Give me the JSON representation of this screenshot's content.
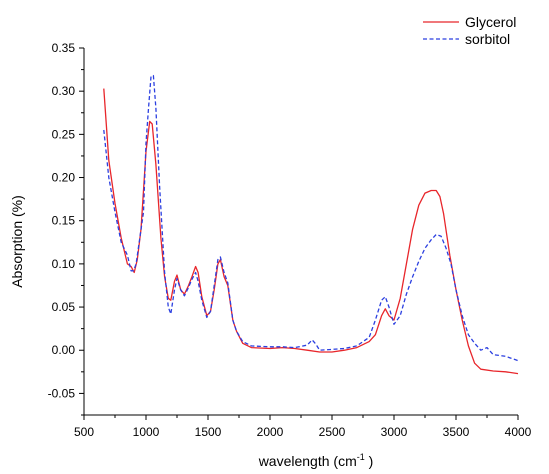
{
  "chart_data": {
    "type": "line",
    "title": "",
    "xlabel": "wavelength (cm",
    "xlabel_sup": "-1",
    "xlabel_suffix": " )",
    "ylabel": "Absorption (%)",
    "xlim": [
      500,
      4000
    ],
    "ylim": [
      -0.075,
      0.35
    ],
    "x_ticks": [
      500,
      1000,
      1500,
      2000,
      2500,
      3000,
      3500,
      4000
    ],
    "x_tick_labels": [
      "500",
      "1000",
      "1500",
      "2000",
      "2500",
      "3000",
      "3500",
      "4000"
    ],
    "y_ticks": [
      -0.05,
      0.0,
      0.05,
      0.1,
      0.15,
      0.2,
      0.25,
      0.3,
      0.35
    ],
    "y_tick_labels": [
      "-0.05",
      "0.00",
      "0.05",
      "0.10",
      "0.15",
      "0.20",
      "0.25",
      "0.30",
      "0.35"
    ],
    "grid": false,
    "legend_position": "top-right",
    "series": [
      {
        "name": "Glycerol",
        "color": "#e8262b",
        "dash": "solid",
        "points": [
          [
            660,
            0.303
          ],
          [
            700,
            0.22
          ],
          [
            750,
            0.17
          ],
          [
            800,
            0.13
          ],
          [
            850,
            0.1
          ],
          [
            880,
            0.097
          ],
          [
            905,
            0.09
          ],
          [
            930,
            0.105
          ],
          [
            960,
            0.14
          ],
          [
            1000,
            0.23
          ],
          [
            1030,
            0.265
          ],
          [
            1050,
            0.262
          ],
          [
            1080,
            0.215
          ],
          [
            1120,
            0.13
          ],
          [
            1150,
            0.085
          ],
          [
            1180,
            0.06
          ],
          [
            1200,
            0.058
          ],
          [
            1230,
            0.08
          ],
          [
            1250,
            0.087
          ],
          [
            1280,
            0.07
          ],
          [
            1310,
            0.065
          ],
          [
            1340,
            0.074
          ],
          [
            1370,
            0.085
          ],
          [
            1400,
            0.097
          ],
          [
            1420,
            0.09
          ],
          [
            1450,
            0.062
          ],
          [
            1490,
            0.04
          ],
          [
            1520,
            0.045
          ],
          [
            1550,
            0.07
          ],
          [
            1580,
            0.1
          ],
          [
            1600,
            0.105
          ],
          [
            1630,
            0.085
          ],
          [
            1660,
            0.075
          ],
          [
            1700,
            0.035
          ],
          [
            1730,
            0.022
          ],
          [
            1780,
            0.008
          ],
          [
            1850,
            0.003
          ],
          [
            2000,
            0.002
          ],
          [
            2100,
            0.003
          ],
          [
            2200,
            0.002
          ],
          [
            2300,
            0.0
          ],
          [
            2400,
            -0.002
          ],
          [
            2500,
            -0.002
          ],
          [
            2600,
            0.0
          ],
          [
            2700,
            0.003
          ],
          [
            2800,
            0.01
          ],
          [
            2850,
            0.018
          ],
          [
            2900,
            0.04
          ],
          [
            2930,
            0.048
          ],
          [
            2960,
            0.04
          ],
          [
            3000,
            0.035
          ],
          [
            3050,
            0.06
          ],
          [
            3100,
            0.1
          ],
          [
            3150,
            0.14
          ],
          [
            3200,
            0.168
          ],
          [
            3250,
            0.182
          ],
          [
            3300,
            0.185
          ],
          [
            3340,
            0.185
          ],
          [
            3370,
            0.178
          ],
          [
            3400,
            0.158
          ],
          [
            3450,
            0.11
          ],
          [
            3500,
            0.07
          ],
          [
            3550,
            0.035
          ],
          [
            3600,
            0.005
          ],
          [
            3650,
            -0.015
          ],
          [
            3700,
            -0.022
          ],
          [
            3800,
            -0.024
          ],
          [
            3900,
            -0.025
          ],
          [
            4000,
            -0.027
          ]
        ]
      },
      {
        "name": "sorbitol",
        "color": "#2b3fe0",
        "dash": "dashed",
        "points": [
          [
            660,
            0.255
          ],
          [
            700,
            0.2
          ],
          [
            750,
            0.16
          ],
          [
            800,
            0.125
          ],
          [
            850,
            0.11
          ],
          [
            880,
            0.092
          ],
          [
            900,
            0.092
          ],
          [
            920,
            0.1
          ],
          [
            950,
            0.13
          ],
          [
            980,
            0.16
          ],
          [
            1000,
            0.24
          ],
          [
            1020,
            0.28
          ],
          [
            1040,
            0.317
          ],
          [
            1060,
            0.318
          ],
          [
            1080,
            0.28
          ],
          [
            1110,
            0.19
          ],
          [
            1150,
            0.09
          ],
          [
            1180,
            0.05
          ],
          [
            1200,
            0.042
          ],
          [
            1230,
            0.07
          ],
          [
            1250,
            0.083
          ],
          [
            1280,
            0.07
          ],
          [
            1310,
            0.063
          ],
          [
            1340,
            0.072
          ],
          [
            1370,
            0.082
          ],
          [
            1400,
            0.09
          ],
          [
            1420,
            0.08
          ],
          [
            1450,
            0.058
          ],
          [
            1490,
            0.038
          ],
          [
            1520,
            0.045
          ],
          [
            1550,
            0.075
          ],
          [
            1580,
            0.105
          ],
          [
            1600,
            0.108
          ],
          [
            1630,
            0.09
          ],
          [
            1660,
            0.078
          ],
          [
            1700,
            0.035
          ],
          [
            1730,
            0.022
          ],
          [
            1780,
            0.01
          ],
          [
            1850,
            0.005
          ],
          [
            2000,
            0.004
          ],
          [
            2100,
            0.004
          ],
          [
            2200,
            0.003
          ],
          [
            2300,
            0.006
          ],
          [
            2340,
            0.012
          ],
          [
            2370,
            0.007
          ],
          [
            2400,
            0.0
          ],
          [
            2500,
            0.001
          ],
          [
            2600,
            0.002
          ],
          [
            2700,
            0.005
          ],
          [
            2800,
            0.015
          ],
          [
            2850,
            0.035
          ],
          [
            2900,
            0.058
          ],
          [
            2930,
            0.062
          ],
          [
            2960,
            0.05
          ],
          [
            3000,
            0.03
          ],
          [
            3050,
            0.04
          ],
          [
            3100,
            0.065
          ],
          [
            3150,
            0.085
          ],
          [
            3200,
            0.103
          ],
          [
            3250,
            0.118
          ],
          [
            3300,
            0.128
          ],
          [
            3340,
            0.134
          ],
          [
            3380,
            0.132
          ],
          [
            3420,
            0.118
          ],
          [
            3460,
            0.1
          ],
          [
            3500,
            0.07
          ],
          [
            3550,
            0.04
          ],
          [
            3600,
            0.018
          ],
          [
            3650,
            0.008
          ],
          [
            3700,
            0.0
          ],
          [
            3750,
            0.003
          ],
          [
            3800,
            -0.005
          ],
          [
            3900,
            -0.007
          ],
          [
            4000,
            -0.012
          ]
        ]
      }
    ]
  }
}
